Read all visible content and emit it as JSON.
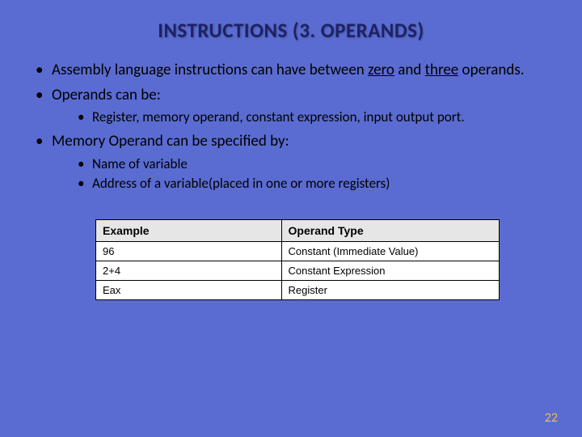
{
  "slide": {
    "background_color": "#5a6cd1",
    "title": {
      "text": "INSTRUCTIONS (3. OPERANDS)",
      "color": "#1d2262",
      "fontsize": 25
    },
    "body_text_color": "#000000",
    "body_fontsize_lvl1": 19,
    "body_fontsize_lvl2": 17,
    "bullets": {
      "b1_pre": "Assembly language instructions can have between ",
      "b1_u1": "zero",
      "b1_mid": " and ",
      "b1_u2": "three",
      "b1_post": " operands.",
      "b2": "Operands can be:",
      "b2_sub1": "Register, memory operand, constant expression, input output port.",
      "b3": "Memory Operand can be specified by:",
      "b3_sub1": "Name of variable",
      "b3_sub2": "Address of a variable(placed in one or more registers)"
    },
    "table": {
      "header_bg": "#e6e6e6",
      "row_bg": "#ffffff",
      "border_color": "#000000",
      "text_color": "#000000",
      "header_fontsize": 14,
      "cell_fontsize": 13,
      "columns": [
        "Example",
        "Operand Type"
      ],
      "rows": [
        [
          "96",
          "Constant (Immediate Value)"
        ],
        [
          "2+4",
          "Constant Expression"
        ],
        [
          "Eax",
          "Register"
        ]
      ],
      "col_width_0": "46%",
      "col_width_1": "54%"
    },
    "page_number": {
      "text": "22",
      "color": "#f4b860",
      "fontsize": 16
    }
  }
}
